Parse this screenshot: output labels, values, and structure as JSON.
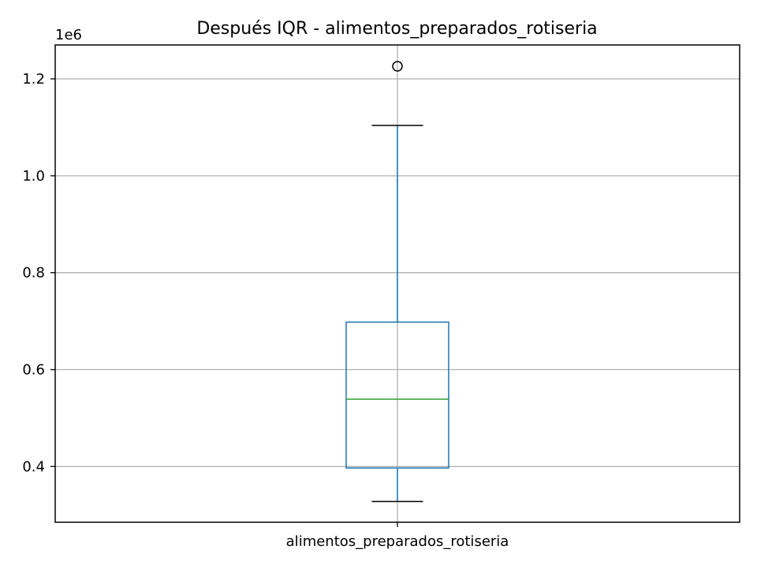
{
  "chart_data": {
    "type": "box",
    "title": "Después IQR - alimentos_preparados_rotiseria",
    "categories": [
      "alimentos_preparados_rotiseria"
    ],
    "y_scale_label": "1e6",
    "ylim": [
      0.285,
      1.27
    ],
    "yticks": [
      0.4,
      0.6,
      0.8,
      1.0,
      1.2
    ],
    "ytick_labels": [
      "0.4",
      "0.6",
      "0.8",
      "1.0",
      "1.2"
    ],
    "grid": true,
    "box": {
      "whisker_low": 0.328,
      "q1": 0.397,
      "median": 0.539,
      "q3": 0.698,
      "whisker_high": 1.104,
      "outliers": [
        1.226
      ]
    },
    "colors": {
      "box": "#1f77b4",
      "median": "#2ca02c",
      "whisker": "#1f77b4",
      "cap": "#000000",
      "grid": "#b0b0b0"
    }
  }
}
